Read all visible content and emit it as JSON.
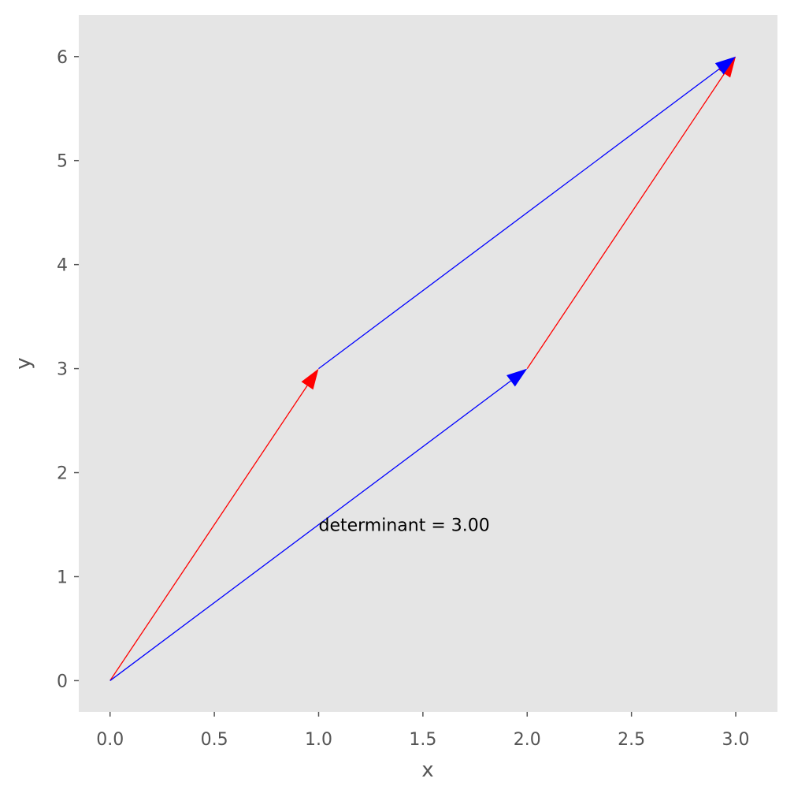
{
  "chart_data": {
    "type": "quiver",
    "xlabel": "x",
    "ylabel": "y",
    "annotation": {
      "text": "determinant = 3.00",
      "x": 1,
      "y": 1.5
    },
    "series": [
      {
        "color": "#ff0000",
        "x": [
          0,
          2
        ],
        "y": [
          0,
          3
        ],
        "u": [
          1,
          1
        ],
        "v": [
          3,
          3
        ]
      },
      {
        "color": "#0000ff",
        "x": [
          0,
          1
        ],
        "y": [
          0,
          3
        ],
        "u": [
          2,
          2
        ],
        "v": [
          3,
          3
        ]
      }
    ],
    "xlim": [
      -0.15,
      3.2
    ],
    "ylim": [
      -0.3,
      6.4
    ],
    "xticks": [
      {
        "value": 0,
        "label": "0.0"
      },
      {
        "value": 0.5,
        "label": "0.5"
      },
      {
        "value": 1,
        "label": "1.0"
      },
      {
        "value": 1.5,
        "label": "1.5"
      },
      {
        "value": 2,
        "label": "2.0"
      },
      {
        "value": 2.5,
        "label": "2.5"
      },
      {
        "value": 3,
        "label": "3.0"
      }
    ],
    "yticks": [
      0,
      1,
      2,
      3,
      4,
      5,
      6
    ],
    "grid": false,
    "background": "#e5e5e5"
  }
}
